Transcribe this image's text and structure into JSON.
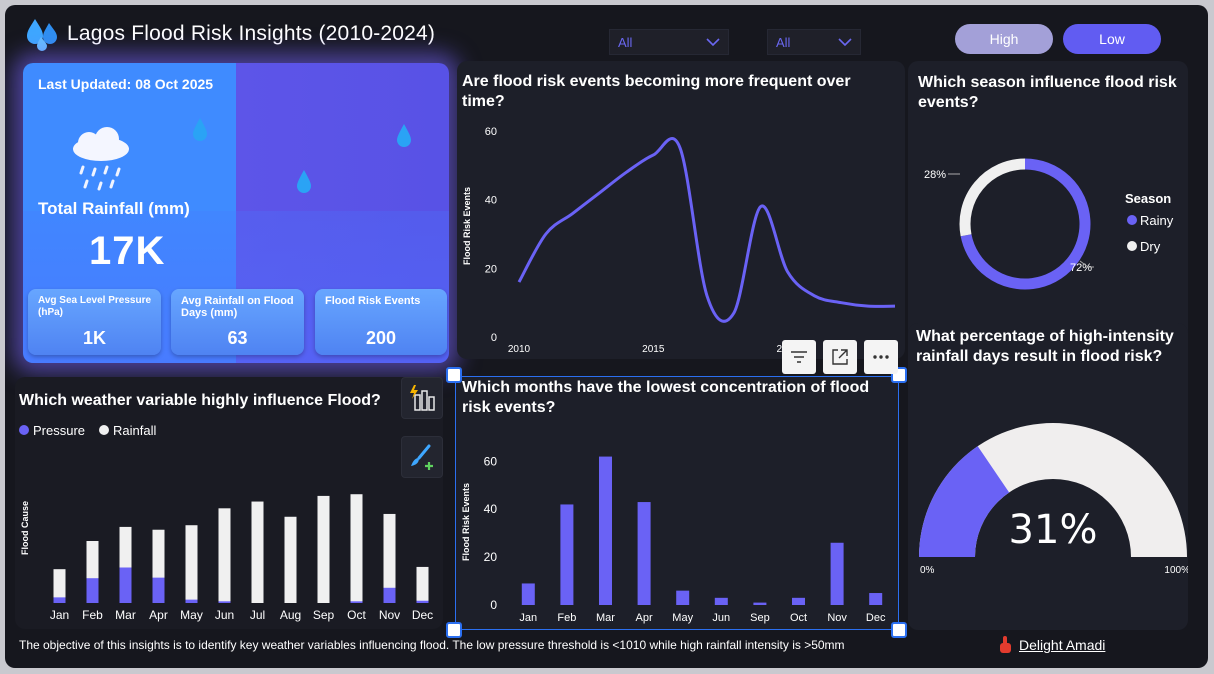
{
  "header": {
    "title": "Lagos Flood Risk Insights (2010-2024)",
    "filter1": "All",
    "filter2": "All",
    "btn_high": "High",
    "btn_low": "Low"
  },
  "kpi": {
    "last_updated": "Last Updated: 08 Oct 2025",
    "total_label": "Total Rainfall (mm)",
    "total_value": "17K",
    "cards": [
      {
        "label": "Avg Sea Level Pressure (hPa)",
        "value": "1K"
      },
      {
        "label": "Avg Rainfall on Flood Days (mm)",
        "value": "63"
      },
      {
        "label": "Flood Risk Events",
        "value": "200"
      }
    ]
  },
  "line_chart": {
    "question": "Are flood risk events becoming more frequent over time?",
    "ylabel": "Flood Risk Events",
    "yticks": [
      "0",
      "20",
      "40",
      "60"
    ],
    "xticks": [
      "2010",
      "2015",
      "2020"
    ]
  },
  "season_chart": {
    "question": "Which season influence flood risk events?",
    "legend_title": "Season",
    "legend": [
      "Rainy",
      "Dry"
    ],
    "label_dry": "28%",
    "label_rainy": "72%"
  },
  "weather_chart": {
    "question": "Which weather variable highly influence Flood?",
    "legend": [
      "Pressure",
      "Rainfall"
    ],
    "ylabel": "Flood Cause"
  },
  "months_chart": {
    "question": "Which months have the lowest concentration of flood risk events?",
    "ylabel": "Flood Risk Events",
    "yticks": [
      "0",
      "20",
      "40",
      "60"
    ]
  },
  "gauge": {
    "question": "What percentage of high-intensity rainfall days result in flood risk?",
    "value_label": "31%",
    "min_label": "0%",
    "max_label": "100%",
    "value": 0.31
  },
  "footer": {
    "note": "The objective of this insights is to identify key weather variables influencing flood. The low pressure threshold is <1010  while high rainfall intensity is >50mm",
    "author": "Delight Amadi"
  },
  "colors": {
    "accent": "#6a62f5",
    "light": "#f0f0f0",
    "panel": "#1d1f29"
  },
  "chart_data": [
    {
      "type": "line",
      "x": [
        2010,
        2011,
        2012,
        2013,
        2014,
        2015,
        2016,
        2017,
        2018,
        2019,
        2020,
        2021,
        2022,
        2023,
        2024
      ],
      "values": [
        16,
        30,
        36,
        42,
        48,
        53,
        55,
        12,
        7,
        38,
        19,
        12,
        10,
        9,
        9
      ],
      "ylabel": "Flood Risk Events",
      "ylim": [
        0,
        60
      ]
    },
    {
      "type": "pie",
      "categories": [
        "Rainy",
        "Dry"
      ],
      "values": [
        72,
        28
      ]
    },
    {
      "type": "bar",
      "categories": [
        "Jan",
        "Feb",
        "Mar",
        "Apr",
        "May",
        "Jun",
        "Jul",
        "Aug",
        "Sep",
        "Oct",
        "Nov",
        "Dec"
      ],
      "series": [
        {
          "name": "Pressure",
          "values": [
            1.0,
            4.4,
            6.3,
            4.5,
            0.6,
            0.3,
            0,
            0,
            0,
            0.3,
            2.7,
            0.4
          ]
        },
        {
          "name": "Rainfall",
          "values": [
            6.0,
            11.0,
            13.5,
            13.0,
            13.8,
            16.8,
            18.0,
            15.3,
            19.0,
            19.3,
            15.8,
            6.4
          ]
        }
      ],
      "ylabel": "Flood Cause",
      "ylim": [
        0,
        22
      ]
    },
    {
      "type": "bar",
      "categories": [
        "Jan",
        "Feb",
        "Mar",
        "Apr",
        "May",
        "Jun",
        "Sep",
        "Oct",
        "Nov",
        "Dec"
      ],
      "values": [
        9,
        42,
        62,
        43,
        6,
        3,
        1,
        3,
        26,
        5
      ],
      "ylabel": "Flood Risk Events",
      "ylim": [
        0,
        66
      ]
    }
  ]
}
